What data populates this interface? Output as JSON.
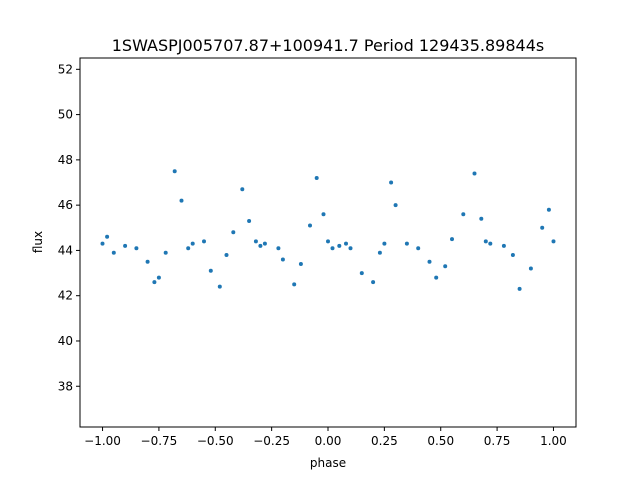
{
  "chart_data": {
    "type": "scatter",
    "title": "1SWASPJ005707.87+100941.7 Period 129435.89844s",
    "xlabel": "phase",
    "ylabel": "flux",
    "xlim": [
      -1.1,
      1.1
    ],
    "ylim": [
      36.2,
      52.5
    ],
    "xticks": [
      -1.0,
      -0.75,
      -0.5,
      -0.25,
      0.0,
      0.25,
      0.5,
      0.75,
      1.0
    ],
    "xtick_labels": [
      "−1.00",
      "−0.75",
      "−0.50",
      "−0.25",
      "0.00",
      "0.25",
      "0.50",
      "0.75",
      "1.00"
    ],
    "yticks": [
      38,
      40,
      42,
      44,
      46,
      48,
      50,
      52
    ],
    "ytick_labels": [
      "38",
      "40",
      "42",
      "44",
      "46",
      "48",
      "50",
      "52"
    ],
    "grid": false,
    "legend": "none",
    "point_color": "#1f77b4",
    "series": [
      {
        "x": [
          -1.0,
          -0.98,
          -0.95,
          -0.9,
          -0.85,
          -0.8,
          -0.77,
          -0.75,
          -0.72,
          -0.68,
          -0.65,
          -0.62,
          -0.6,
          -0.55,
          -0.52,
          -0.48,
          -0.45,
          -0.42,
          -0.38,
          -0.35,
          -0.32,
          -0.3,
          -0.28,
          -0.22,
          -0.2,
          -0.15,
          -0.12,
          -0.08,
          -0.05,
          -0.02,
          0.0,
          0.02,
          0.05,
          0.08,
          0.1,
          0.15,
          0.2,
          0.23,
          0.25,
          0.28,
          0.3,
          0.35,
          0.4,
          0.45,
          0.48,
          0.52,
          0.55,
          0.6,
          0.65,
          0.68,
          0.7,
          0.72,
          0.78,
          0.82,
          0.85,
          0.9,
          0.95,
          0.98,
          1.0
        ],
        "y": [
          44.3,
          44.6,
          43.9,
          44.2,
          44.1,
          43.5,
          42.6,
          42.8,
          43.9,
          47.5,
          46.2,
          44.1,
          44.3,
          44.4,
          43.1,
          42.4,
          43.8,
          44.8,
          46.7,
          45.3,
          44.4,
          44.2,
          44.3,
          44.1,
          43.6,
          42.5,
          43.4,
          45.1,
          47.2,
          45.6,
          44.4,
          44.1,
          44.2,
          44.3,
          44.1,
          43.0,
          42.6,
          43.9,
          44.3,
          47.0,
          46.0,
          44.3,
          44.1,
          43.5,
          42.8,
          43.3,
          44.5,
          45.6,
          47.4,
          45.4,
          44.4,
          44.3,
          44.2,
          43.8,
          42.3,
          43.2,
          45.0,
          45.8,
          44.4
        ]
      }
    ]
  }
}
